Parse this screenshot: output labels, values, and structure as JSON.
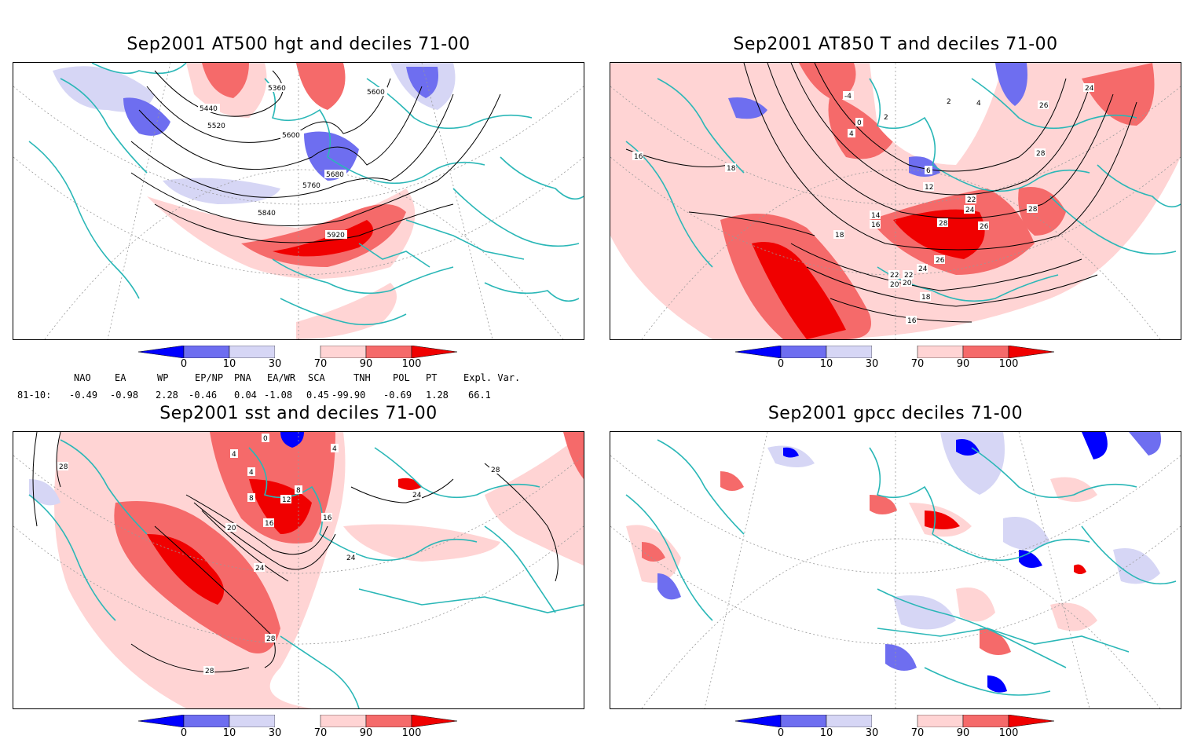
{
  "panels": [
    {
      "title": "Sep2001 AT500 hgt and deciles 71-00",
      "variable": "500 hPa geopotential height",
      "contour_labels": [
        "5360",
        "5440",
        "5520",
        "5600",
        "5600",
        "5680",
        "5760",
        "5840",
        "5920"
      ]
    },
    {
      "title": "Sep2001 AT850 T and deciles 71-00",
      "variable": "850 hPa temperature",
      "contour_labels": [
        "-4",
        "0",
        "2",
        "4",
        "4",
        "2",
        "6",
        "12",
        "14",
        "16",
        "16",
        "18",
        "18",
        "20",
        "22",
        "22",
        "24",
        "24",
        "24",
        "26",
        "26",
        "26",
        "28",
        "28",
        "28",
        "16",
        "18",
        "20",
        "22"
      ]
    },
    {
      "title": "Sep2001 sst and deciles 71-00",
      "variable": "sea surface temperature",
      "contour_labels": [
        "0",
        "4",
        "4",
        "4",
        "8",
        "8",
        "12",
        "16",
        "16",
        "20",
        "24",
        "24",
        "24",
        "28",
        "28",
        "28",
        "28"
      ]
    },
    {
      "title": "Sep2001 gpcc deciles 71-00",
      "variable": "precipitation",
      "contour_labels": []
    }
  ],
  "colorbar": {
    "ticks": [
      "0",
      "10",
      "30",
      "70",
      "90",
      "100"
    ],
    "colors": [
      "#0000ff",
      "#6e6ef0",
      "#d6d6f5",
      "#ffffff",
      "#ffd4d4",
      "#f56a6a",
      "#f00000"
    ]
  },
  "teleconnections": {
    "headers": [
      "NAO",
      "EA",
      "WP",
      "EP/NP",
      "PNA",
      "EA/WR",
      "SCA",
      "TNH",
      "POL",
      "PT",
      "Expl. Var."
    ],
    "row_label": "81-10:",
    "values": [
      "-0.49",
      "-0.98",
      "2.28",
      "-0.46",
      "0.04",
      "-1.08",
      "0.45",
      "-99.90",
      "-0.69",
      "1.28",
      "66.1"
    ]
  },
  "map_colors": {
    "coast": "#2ab7b7",
    "contour": "#000000",
    "grid": "#888888"
  }
}
